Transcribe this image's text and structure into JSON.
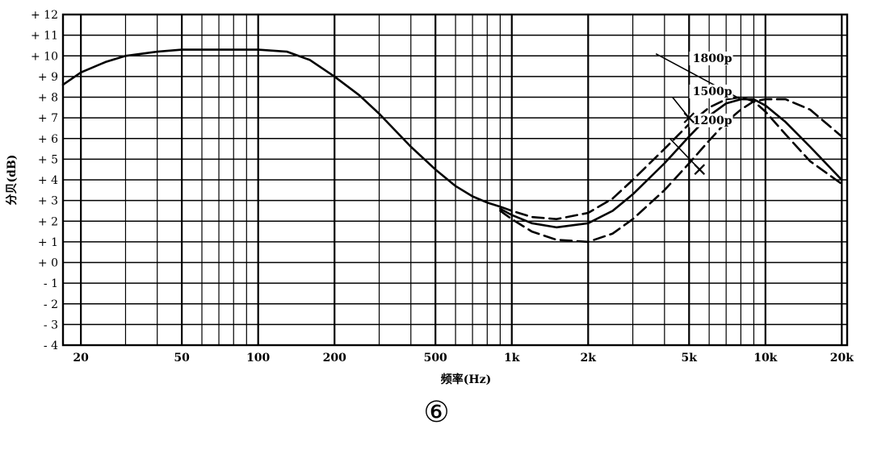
{
  "figure_number": "⑥",
  "chart_data": {
    "type": "line",
    "title": "",
    "xlabel": "频率(Hz)",
    "ylabel": "分贝(dB)",
    "xscale": "log",
    "xlim": [
      17,
      21000
    ],
    "ylim": [
      -4,
      12
    ],
    "grid": true,
    "legend": "none",
    "x_ticks": [
      {
        "value": 20,
        "label": "20"
      },
      {
        "value": 50,
        "label": "50"
      },
      {
        "value": 100,
        "label": "100"
      },
      {
        "value": 200,
        "label": "200"
      },
      {
        "value": 500,
        "label": "500"
      },
      {
        "value": 1000,
        "label": "1k"
      },
      {
        "value": 2000,
        "label": "2k"
      },
      {
        "value": 5000,
        "label": "5k"
      },
      {
        "value": 10000,
        "label": "10k"
      },
      {
        "value": 20000,
        "label": "20k"
      }
    ],
    "y_ticks": [
      {
        "value": 12,
        "label": "+ 12"
      },
      {
        "value": 11,
        "label": "+ 11"
      },
      {
        "value": 10,
        "label": "+ 10"
      },
      {
        "value": 9,
        "label": "+ 9"
      },
      {
        "value": 8,
        "label": "+ 8"
      },
      {
        "value": 7,
        "label": "+ 7"
      },
      {
        "value": 6,
        "label": "+ 6"
      },
      {
        "value": 5,
        "label": "+ 5"
      },
      {
        "value": 4,
        "label": "+ 4"
      },
      {
        "value": 3,
        "label": "+ 3"
      },
      {
        "value": 2,
        "label": "+ 2"
      },
      {
        "value": 1,
        "label": "+ 1"
      },
      {
        "value": 0,
        "label": "+ 0"
      },
      {
        "value": -1,
        "label": "- 1"
      },
      {
        "value": -2,
        "label": "- 2"
      },
      {
        "value": -3,
        "label": "- 3"
      },
      {
        "value": -4,
        "label": "- 4"
      }
    ],
    "minor_x": [
      30,
      40,
      60,
      70,
      80,
      90,
      300,
      400,
      600,
      700,
      800,
      900,
      3000,
      4000,
      6000,
      7000,
      8000,
      9000
    ],
    "series": [
      {
        "name": "",
        "style": "solid",
        "x": [
          17,
          20,
          25,
          30,
          40,
          50,
          60,
          80,
          100,
          130,
          160,
          200,
          250,
          300,
          400,
          500,
          600,
          700,
          800,
          900
        ],
        "y": [
          8.6,
          9.2,
          9.7,
          10.0,
          10.2,
          10.3,
          10.3,
          10.3,
          10.3,
          10.2,
          9.8,
          9.0,
          8.1,
          7.2,
          5.6,
          4.5,
          3.7,
          3.2,
          2.9,
          2.7
        ]
      },
      {
        "name": "1800p",
        "style": "dashed",
        "x": [
          900,
          1000,
          1200,
          1500,
          2000,
          2500,
          3000,
          4000,
          5000,
          6000,
          7000,
          8000,
          9000,
          10000,
          12000,
          15000,
          20000
        ],
        "y": [
          2.7,
          2.5,
          2.2,
          2.1,
          2.4,
          3.1,
          4.0,
          5.5,
          6.7,
          7.5,
          7.9,
          8.0,
          7.8,
          7.3,
          6.2,
          4.9,
          3.8
        ]
      },
      {
        "name": "1500p",
        "style": "solid",
        "x": [
          900,
          1000,
          1200,
          1500,
          2000,
          2500,
          3000,
          4000,
          5000,
          6000,
          7000,
          8000,
          9000,
          10000,
          12000,
          15000,
          20000
        ],
        "y": [
          2.6,
          2.3,
          1.9,
          1.7,
          1.9,
          2.5,
          3.3,
          4.8,
          6.1,
          7.1,
          7.7,
          7.9,
          7.9,
          7.6,
          6.8,
          5.6,
          4.0
        ]
      },
      {
        "name": "1200p",
        "style": "dashed",
        "x": [
          900,
          1000,
          1200,
          1500,
          2000,
          2500,
          3000,
          4000,
          5000,
          6000,
          7000,
          8000,
          9000,
          10000,
          12000,
          15000,
          20000
        ],
        "y": [
          2.5,
          2.1,
          1.5,
          1.1,
          1.0,
          1.4,
          2.1,
          3.5,
          4.8,
          5.9,
          6.8,
          7.4,
          7.8,
          7.9,
          7.9,
          7.4,
          6.1
        ]
      }
    ],
    "curve_labels": [
      {
        "text": "1800p",
        "series": "1800p",
        "x": 7500,
        "y": 9.7
      },
      {
        "text": "1500p",
        "series": "1500p",
        "x": 7500,
        "y": 8.1
      },
      {
        "text": "1200p",
        "series": "1200p",
        "x": 7500,
        "y": 6.7
      }
    ],
    "label_leaders": [
      {
        "from": [
          3700,
          10.1
        ],
        "to": [
          8000,
          7.9
        ]
      },
      {
        "from": [
          4300,
          8.0
        ],
        "to": [
          5000,
          7.0
        ]
      },
      {
        "from": [
          4200,
          6.0
        ],
        "to": [
          5500,
          4.5
        ]
      }
    ]
  }
}
